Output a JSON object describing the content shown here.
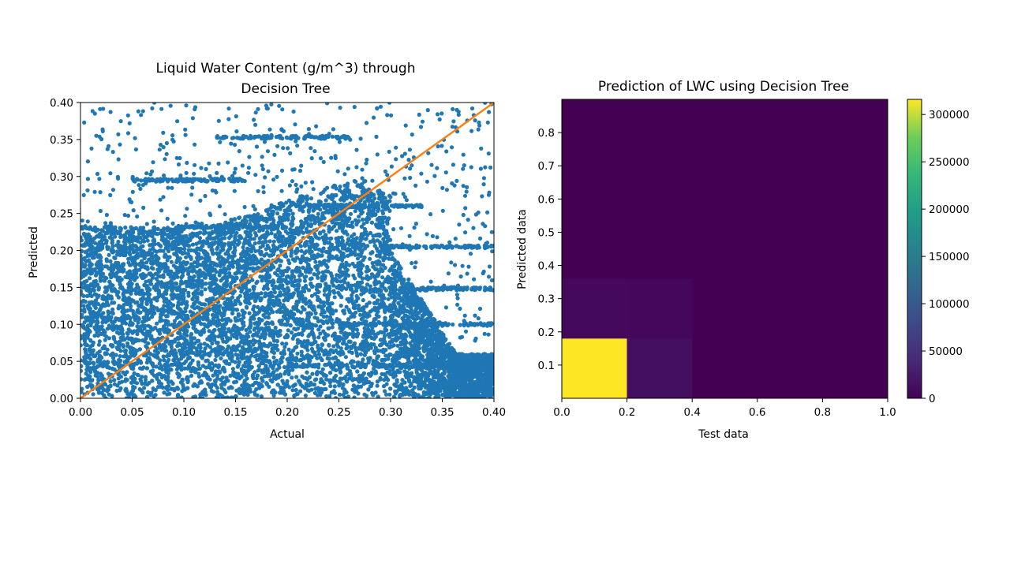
{
  "chart_data": [
    {
      "type": "scatter",
      "title": [
        "Liquid Water Content (g/m^3) through",
        "Decision Tree"
      ],
      "xlabel": "Actual",
      "ylabel": "Predicted",
      "xlim": [
        0,
        0.4
      ],
      "ylim": [
        0,
        0.4
      ],
      "xticks": [
        "0.00",
        "0.05",
        "0.10",
        "0.15",
        "0.20",
        "0.25",
        "0.30",
        "0.35",
        "0.40"
      ],
      "yticks": [
        "0.00",
        "0.05",
        "0.10",
        "0.15",
        "0.20",
        "0.25",
        "0.30",
        "0.35",
        "0.40"
      ],
      "grid": false,
      "series": [
        {
          "kind": "points",
          "color": "#1f77b4",
          "description": "dense point cloud of predicted vs actual LWC"
        },
        {
          "kind": "line",
          "color": "#ff7f0e",
          "x": [
            0,
            0.4
          ],
          "y": [
            0,
            0.4
          ]
        }
      ]
    },
    {
      "type": "heatmap",
      "title": "Prediction of LWC using Decision Tree",
      "xlabel": "Test data",
      "ylabel": "Predicted data",
      "xlim": [
        0,
        1.0
      ],
      "ylim": [
        0,
        0.9
      ],
      "xticks": [
        "0.0",
        "0.2",
        "0.4",
        "0.6",
        "0.8",
        "1.0"
      ],
      "yticks": [
        "0.1",
        "0.2",
        "0.3",
        "0.4",
        "0.5",
        "0.6",
        "0.7",
        "0.8"
      ],
      "colormap": "viridis",
      "colorbar": {
        "min": 0,
        "max": 316000,
        "ticks": [
          "0",
          "50000",
          "100000",
          "150000",
          "200000",
          "250000",
          "300000"
        ]
      },
      "cells": [
        {
          "x0": 0.0,
          "x1": 0.2,
          "y0": 0.0,
          "y1": 0.18,
          "value": 316000
        },
        {
          "x0": 0.2,
          "x1": 0.4,
          "y0": 0.0,
          "y1": 0.18,
          "value": 14000
        },
        {
          "x0": 0.0,
          "x1": 0.2,
          "y0": 0.18,
          "y1": 0.36,
          "value": 8000
        },
        {
          "x0": 0.2,
          "x1": 0.4,
          "y0": 0.18,
          "y1": 0.36,
          "value": 6000
        }
      ],
      "background_value": 0
    }
  ]
}
